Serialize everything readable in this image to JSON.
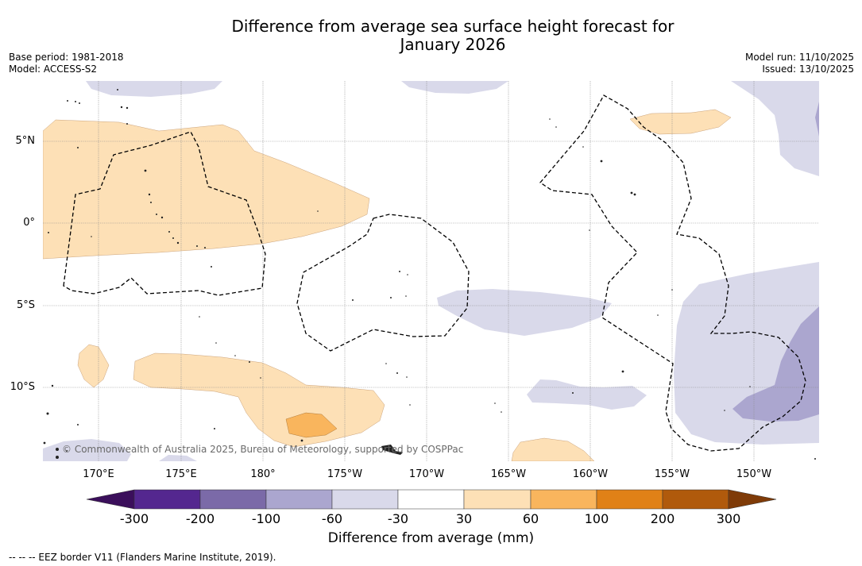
{
  "title": {
    "line1": "Difference from average sea surface height forecast for",
    "line2": "January 2026"
  },
  "meta": {
    "base_period": "Base period: 1981-2018",
    "model": "Model: ACCESS-S2",
    "model_run": "Model run: 11/10/2025",
    "issued": "Issued: 13/10/2025"
  },
  "map": {
    "credit": "© Commonwealth of Australia 2025, Bureau of Meteorology, supported by COSPPac",
    "lat_labels": [
      "5°N",
      "0°",
      "5°S",
      "10°S"
    ],
    "lon_labels": [
      "170°E",
      "175°E",
      "180°",
      "175°W",
      "170°W",
      "165°W",
      "160°W",
      "155°W",
      "150°W"
    ]
  },
  "colorbar": {
    "title": "Difference from average (mm)",
    "labels": [
      "-300",
      "-200",
      "-100",
      "-60",
      "-30",
      "30",
      "60",
      "100",
      "200",
      "300"
    ],
    "colors": [
      "#3b0f5b",
      "#54278f",
      "#7b6aa8",
      "#aba6cf",
      "#d9d9ea",
      "#ffffff",
      "#fde0b6",
      "#f9b55d",
      "#e08117",
      "#b05a0c",
      "#7f3b08"
    ]
  },
  "footnote": "--  --  -- EEZ border V11 (Flanders Marine Institute, 2019)."
}
